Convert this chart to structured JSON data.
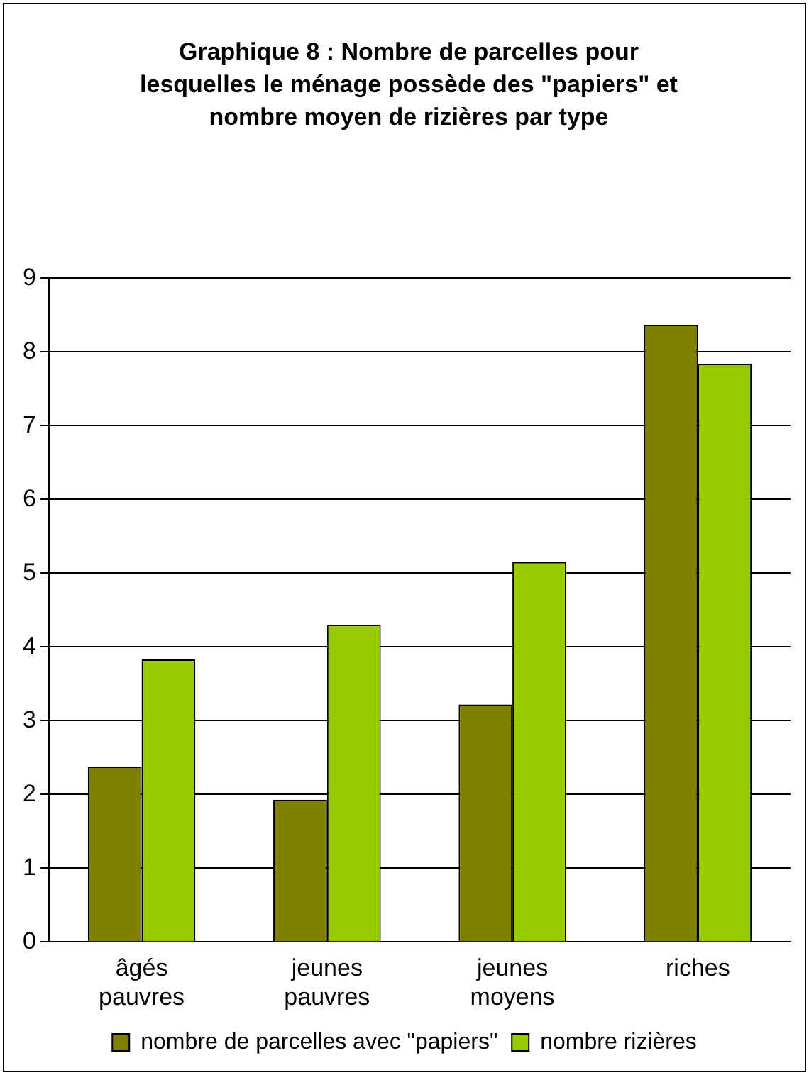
{
  "chart_data": {
    "type": "bar",
    "title": "Graphique 8 : Nombre de parcelles pour lesquelles le ménage possède des \"papiers\" et nombre moyen de rizières par type",
    "categories": [
      "âgés pauvres",
      "jeunes pauvres",
      "jeunes moyens",
      "riches"
    ],
    "series": [
      {
        "name": "nombre de parcelles avec \"papiers\"",
        "color": "#808000",
        "values": [
          2.38,
          1.93,
          3.22,
          8.37
        ]
      },
      {
        "name": "nombre rizières",
        "color": "#99cc00",
        "values": [
          3.83,
          4.3,
          5.15,
          7.84
        ]
      }
    ],
    "ylim": [
      0,
      9
    ],
    "yticks": [
      0,
      1,
      2,
      3,
      4,
      5,
      6,
      7,
      8,
      9
    ],
    "grid": "y",
    "legend": "bottom"
  }
}
